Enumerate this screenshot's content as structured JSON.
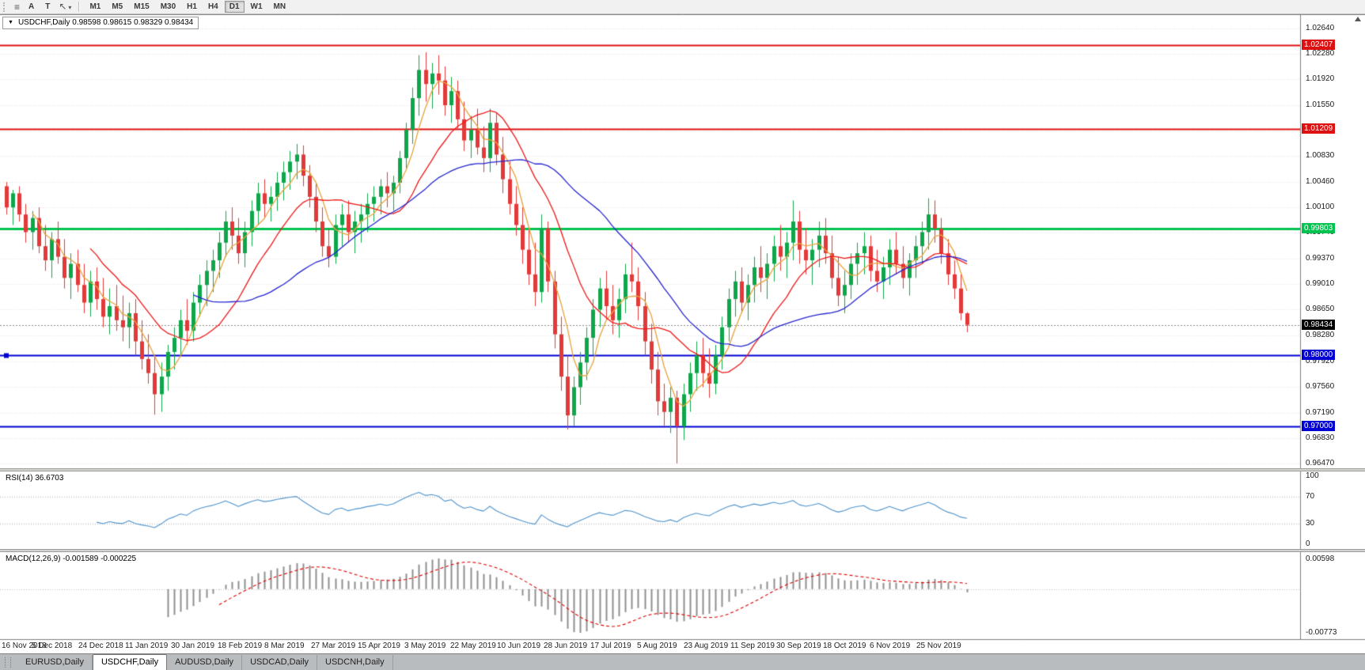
{
  "toolbar": {
    "a_label": "A",
    "t_label": "T",
    "timeframes": [
      "M1",
      "M5",
      "M15",
      "M30",
      "H1",
      "H4",
      "D1",
      "W1",
      "MN"
    ],
    "active_timeframe": "D1"
  },
  "chart": {
    "symbol": "USDCHF",
    "period": "Daily",
    "header": "USDCHF,Daily 0.98598 0.98615 0.98329 0.98434",
    "ohlc": {
      "open": "0.98598",
      "high": "0.98615",
      "low": "0.98329",
      "close": "0.98434"
    }
  },
  "chart_data": {
    "type": "candlestick",
    "symbol": "USDCHF",
    "timeframe": "Daily",
    "up_color": "#0fa64b",
    "down_color": "#e23a3a",
    "grid_color": "#e2e2e2",
    "y_range": [
      0.964,
      1.0284
    ],
    "y_ticks": [
      "1.02640",
      "1.02280",
      "1.01920",
      "1.01550",
      "1.01180",
      "1.00830",
      "1.00460",
      "1.00100",
      "0.99740",
      "0.99370",
      "0.99010",
      "0.98650",
      "0.98280",
      "0.97920",
      "0.97560",
      "0.97190",
      "0.96830",
      "0.96470"
    ],
    "x_labels": [
      "16 Nov 2018",
      "5 Dec 2018",
      "24 Dec 2018",
      "11 Jan 2019",
      "30 Jan 2019",
      "18 Feb 2019",
      "8 Mar 2019",
      "27 Mar 2019",
      "15 Apr 2019",
      "3 May 2019",
      "22 May 2019",
      "10 Jun 2019",
      "28 Jun 2019",
      "17 Jul 2019",
      "5 Aug 2019",
      "23 Aug 2019",
      "11 Sep 2019",
      "30 Sep 2019",
      "18 Oct 2019",
      "6 Nov 2019",
      "25 Nov 2019"
    ],
    "horizontal_lines": [
      {
        "price": "1.02407",
        "color": "#dd1111",
        "width": 2
      },
      {
        "price": "1.01209",
        "color": "#dd1111",
        "width": 2
      },
      {
        "price": "0.99803",
        "color": "#00c24e",
        "width": 3
      },
      {
        "price": "0.98000",
        "color": "#0000d4",
        "width": 2,
        "handle": true
      },
      {
        "price": "0.97000",
        "color": "#0000d4",
        "width": 2
      }
    ],
    "current_price": {
      "value": "0.98434",
      "line_color": "#8a8a8a",
      "tag_bg": "#000000"
    },
    "moving_averages": [
      {
        "period": 5,
        "color": "#e8a33d"
      },
      {
        "period": 14,
        "color": "#f01818"
      },
      {
        "period": 30,
        "color": "#2626d2"
      }
    ],
    "rsi": {
      "label": "RSI(14) 36.6703",
      "period": 14,
      "current": "36.6703",
      "levels": [
        70,
        30
      ],
      "y_ticks": [
        "100",
        "70",
        "30",
        "0"
      ],
      "color": "#4f94cd"
    },
    "macd": {
      "label": "MACD(12,26,9) -0.001589 -0.000225",
      "fast": 12,
      "slow": 26,
      "signal": 9,
      "macd_value": "-0.001589",
      "signal_value": "-0.000225",
      "y_ticks": [
        "0.00598",
        "-0.00773"
      ],
      "histogram_color": "#8f8f8f",
      "signal_color": "#e00000"
    },
    "candles": [
      [
        1.004,
        1.0046,
        1.0,
        1.001
      ],
      [
        1.001,
        1.0035,
        0.9985,
        1.003
      ],
      [
        1.003,
        1.004,
        0.999,
        1.0
      ],
      [
        1.0,
        1.0015,
        0.996,
        0.9975
      ],
      [
        0.9975,
        1.0005,
        0.995,
        0.9995
      ],
      [
        0.9995,
        1.001,
        0.9945,
        0.9955
      ],
      [
        0.9955,
        0.9985,
        0.992,
        0.9935
      ],
      [
        0.9935,
        0.9975,
        0.991,
        0.9965
      ],
      [
        0.9965,
        0.999,
        0.993,
        0.994
      ],
      [
        0.994,
        0.9965,
        0.9895,
        0.991
      ],
      [
        0.991,
        0.9945,
        0.988,
        0.993
      ],
      [
        0.993,
        0.995,
        0.989,
        0.99
      ],
      [
        0.99,
        0.993,
        0.986,
        0.9875
      ],
      [
        0.9875,
        0.992,
        0.9855,
        0.9905
      ],
      [
        0.9905,
        0.9925,
        0.9865,
        0.988
      ],
      [
        0.988,
        0.991,
        0.984,
        0.9855
      ],
      [
        0.9855,
        0.9895,
        0.983,
        0.987
      ],
      [
        0.987,
        0.99,
        0.9835,
        0.985
      ],
      [
        0.985,
        0.9885,
        0.982,
        0.984
      ],
      [
        0.984,
        0.9875,
        0.981,
        0.986
      ],
      [
        0.986,
        0.988,
        0.98,
        0.982
      ],
      [
        0.982,
        0.985,
        0.978,
        0.9795
      ],
      [
        0.9795,
        0.983,
        0.976,
        0.9775
      ],
      [
        0.9775,
        0.98,
        0.9716,
        0.9745
      ],
      [
        0.9745,
        0.979,
        0.972,
        0.977
      ],
      [
        0.977,
        0.9815,
        0.975,
        0.9805
      ],
      [
        0.9805,
        0.984,
        0.978,
        0.9825
      ],
      [
        0.9825,
        0.9865,
        0.98,
        0.985
      ],
      [
        0.985,
        0.988,
        0.9815,
        0.9835
      ],
      [
        0.9835,
        0.989,
        0.982,
        0.9875
      ],
      [
        0.9875,
        0.9915,
        0.9855,
        0.99
      ],
      [
        0.99,
        0.9935,
        0.987,
        0.992
      ],
      [
        0.992,
        0.995,
        0.989,
        0.9935
      ],
      [
        0.9935,
        0.9975,
        0.991,
        0.996
      ],
      [
        0.996,
        1.0005,
        0.994,
        0.999
      ],
      [
        0.999,
        1.001,
        0.995,
        0.997
      ],
      [
        0.997,
        0.9995,
        0.993,
        0.9945
      ],
      [
        0.9945,
        0.999,
        0.9925,
        0.9975
      ],
      [
        0.9975,
        1.002,
        0.9955,
        1.0005
      ],
      [
        1.0005,
        1.0045,
        0.9985,
        1.003
      ],
      [
        1.003,
        1.005,
        0.9995,
        1.0015
      ],
      [
        1.0015,
        1.004,
        0.999,
        1.0025
      ],
      [
        1.0025,
        1.006,
        1.0005,
        1.0045
      ],
      [
        1.0045,
        1.0075,
        1.002,
        1.006
      ],
      [
        1.006,
        1.009,
        1.0035,
        1.0075
      ],
      [
        1.0075,
        1.01,
        1.005,
        1.0085
      ],
      [
        1.0085,
        1.0098,
        1.004,
        1.0055
      ],
      [
        1.0055,
        1.007,
        1.001,
        1.0025
      ],
      [
        1.0025,
        1.0045,
        0.9975,
        0.999
      ],
      [
        0.999,
        1.001,
        0.994,
        0.9955
      ],
      [
        0.9955,
        0.998,
        0.9925,
        0.994
      ],
      [
        0.994,
        1.0,
        0.993,
        0.9985
      ],
      [
        0.9985,
        1.0015,
        0.9955,
        1.0
      ],
      [
        1.0,
        1.002,
        0.996,
        0.9975
      ],
      [
        0.9975,
        1.0005,
        0.9945,
        0.999
      ],
      [
        0.999,
        1.0015,
        0.996,
        1.0
      ],
      [
        1.0,
        1.003,
        0.9975,
        1.0015
      ],
      [
        1.0015,
        1.004,
        0.999,
        1.0025
      ],
      [
        1.0025,
        1.005,
        1.0,
        1.004
      ],
      [
        1.004,
        1.006,
        1.001,
        1.003
      ],
      [
        1.003,
        1.0055,
        1.0005,
        1.0045
      ],
      [
        1.0045,
        1.009,
        1.003,
        1.008
      ],
      [
        1.008,
        1.013,
        1.0065,
        1.012
      ],
      [
        1.012,
        1.018,
        1.01,
        1.0165
      ],
      [
        1.0165,
        1.0226,
        1.014,
        1.0205
      ],
      [
        1.0205,
        1.023,
        1.016,
        1.0185
      ],
      [
        1.0185,
        1.0215,
        1.015,
        1.02
      ],
      [
        1.02,
        1.0226,
        1.017,
        1.019
      ],
      [
        1.019,
        1.021,
        1.014,
        1.0155
      ],
      [
        1.0155,
        1.0195,
        1.013,
        1.0175
      ],
      [
        1.0175,
        1.019,
        1.012,
        1.0135
      ],
      [
        1.0135,
        1.016,
        1.009,
        1.0105
      ],
      [
        1.0105,
        1.014,
        1.008,
        1.012
      ],
      [
        1.012,
        1.015,
        1.0085,
        1.0095
      ],
      [
        1.0095,
        1.0125,
        1.006,
        1.008
      ],
      [
        1.008,
        1.015,
        1.006,
        1.013
      ],
      [
        1.013,
        1.0145,
        1.007,
        1.0085
      ],
      [
        1.0085,
        1.011,
        1.003,
        1.005
      ],
      [
        1.005,
        1.0075,
        1.0,
        1.0015
      ],
      [
        1.0015,
        1.004,
        0.997,
        0.9985
      ],
      [
        0.9985,
        1.001,
        0.993,
        0.995
      ],
      [
        0.995,
        0.998,
        0.99,
        0.9915
      ],
      [
        0.9915,
        0.996,
        0.987,
        0.989
      ],
      [
        0.989,
        1.0,
        0.9875,
        0.998
      ],
      [
        0.998,
        0.999,
        0.989,
        0.9905
      ],
      [
        0.9905,
        0.992,
        0.981,
        0.983
      ],
      [
        0.983,
        0.9855,
        0.975,
        0.977
      ],
      [
        0.977,
        0.98,
        0.9695,
        0.9715
      ],
      [
        0.9715,
        0.977,
        0.97,
        0.9755
      ],
      [
        0.9755,
        0.9805,
        0.973,
        0.979
      ],
      [
        0.979,
        0.984,
        0.9765,
        0.9825
      ],
      [
        0.9825,
        0.988,
        0.98,
        0.9865
      ],
      [
        0.9865,
        0.991,
        0.984,
        0.9895
      ],
      [
        0.9895,
        0.992,
        0.985,
        0.987
      ],
      [
        0.987,
        0.99,
        0.983,
        0.985
      ],
      [
        0.985,
        0.9895,
        0.9825,
        0.988
      ],
      [
        0.988,
        0.993,
        0.986,
        0.9915
      ],
      [
        0.9915,
        0.996,
        0.989,
        0.9905
      ],
      [
        0.9905,
        0.9925,
        0.985,
        0.987
      ],
      [
        0.987,
        0.989,
        0.98,
        0.982
      ],
      [
        0.982,
        0.9845,
        0.976,
        0.978
      ],
      [
        0.978,
        0.9805,
        0.9715,
        0.9735
      ],
      [
        0.9735,
        0.976,
        0.97,
        0.972
      ],
      [
        0.972,
        0.9755,
        0.969,
        0.974
      ],
      [
        0.974,
        0.975,
        0.9647,
        0.97
      ],
      [
        0.97,
        0.976,
        0.968,
        0.9745
      ],
      [
        0.9745,
        0.979,
        0.972,
        0.9775
      ],
      [
        0.9775,
        0.982,
        0.975,
        0.98
      ],
      [
        0.98,
        0.9825,
        0.9755,
        0.9775
      ],
      [
        0.9775,
        0.981,
        0.974,
        0.976
      ],
      [
        0.976,
        0.9815,
        0.9745,
        0.98
      ],
      [
        0.98,
        0.9855,
        0.978,
        0.984
      ],
      [
        0.984,
        0.9895,
        0.982,
        0.988
      ],
      [
        0.988,
        0.992,
        0.9855,
        0.9905
      ],
      [
        0.9905,
        0.9925,
        0.986,
        0.9875
      ],
      [
        0.9875,
        0.9915,
        0.985,
        0.99
      ],
      [
        0.99,
        0.994,
        0.9875,
        0.9925
      ],
      [
        0.9925,
        0.9955,
        0.989,
        0.991
      ],
      [
        0.991,
        0.9945,
        0.988,
        0.993
      ],
      [
        0.993,
        0.997,
        0.9905,
        0.9955
      ],
      [
        0.9955,
        0.9985,
        0.992,
        0.994
      ],
      [
        0.994,
        0.9975,
        0.991,
        0.996
      ],
      [
        0.996,
        1.002,
        0.9935,
        0.999
      ],
      [
        0.999,
        1.0005,
        0.993,
        0.995
      ],
      [
        0.995,
        0.998,
        0.9915,
        0.9935
      ],
      [
        0.9935,
        0.9965,
        0.99,
        0.995
      ],
      [
        0.995,
        0.999,
        0.9925,
        0.997
      ],
      [
        0.997,
        0.9995,
        0.993,
        0.9945
      ],
      [
        0.9945,
        0.997,
        0.9895,
        0.991
      ],
      [
        0.991,
        0.994,
        0.987,
        0.9885
      ],
      [
        0.9885,
        0.992,
        0.986,
        0.99
      ],
      [
        0.99,
        0.9945,
        0.988,
        0.993
      ],
      [
        0.993,
        0.996,
        0.99,
        0.9945
      ],
      [
        0.9945,
        0.9975,
        0.9915,
        0.9955
      ],
      [
        0.9955,
        0.997,
        0.9905,
        0.992
      ],
      [
        0.992,
        0.995,
        0.989,
        0.9905
      ],
      [
        0.9905,
        0.994,
        0.988,
        0.9925
      ],
      [
        0.9925,
        0.9965,
        0.99,
        0.995
      ],
      [
        0.995,
        0.9975,
        0.9915,
        0.993
      ],
      [
        0.993,
        0.9955,
        0.9895,
        0.991
      ],
      [
        0.991,
        0.9945,
        0.9885,
        0.9935
      ],
      [
        0.9935,
        0.997,
        0.991,
        0.9955
      ],
      [
        0.9955,
        0.999,
        0.993,
        0.9975
      ],
      [
        0.9975,
        1.0023,
        0.995,
        1.0
      ],
      [
        1.0,
        1.002,
        0.996,
        0.998
      ],
      [
        0.998,
        0.9995,
        0.993,
        0.9945
      ],
      [
        0.9945,
        0.9965,
        0.99,
        0.9915
      ],
      [
        0.9915,
        0.9935,
        0.988,
        0.9895
      ],
      [
        0.9895,
        0.9915,
        0.985,
        0.986
      ],
      [
        0.98598,
        0.98615,
        0.98329,
        0.98434
      ]
    ]
  },
  "tabs": {
    "items": [
      "EURUSD,Daily",
      "USDCHF,Daily",
      "AUDUSD,Daily",
      "USDCAD,Daily",
      "USDCNH,Daily"
    ],
    "active": "USDCHF,Daily"
  }
}
